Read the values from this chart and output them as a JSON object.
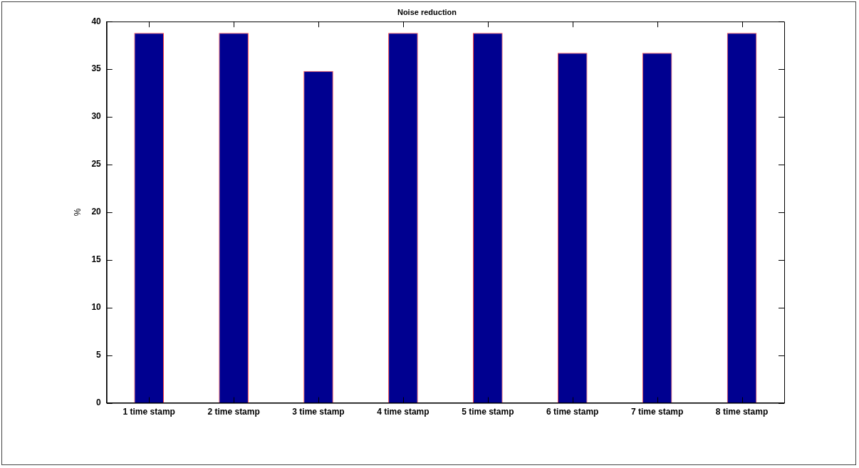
{
  "chart_data": {
    "type": "bar",
    "title": "Noise reduction",
    "ylabel": "%",
    "categories": [
      "1 time stamp",
      "2 time stamp",
      "3 time stamp",
      "4 time stamp",
      "5 time stamp",
      "6 time stamp",
      "7 time stamp",
      "8 time stamp"
    ],
    "values": [
      38.8,
      38.8,
      34.8,
      38.8,
      38.8,
      36.7,
      36.7,
      38.8
    ],
    "color": "#000090",
    "ylim": [
      0,
      40
    ],
    "yticks": [
      0,
      5,
      10,
      15,
      20,
      25,
      30,
      35,
      40
    ],
    "grid": false,
    "legend": false
  }
}
